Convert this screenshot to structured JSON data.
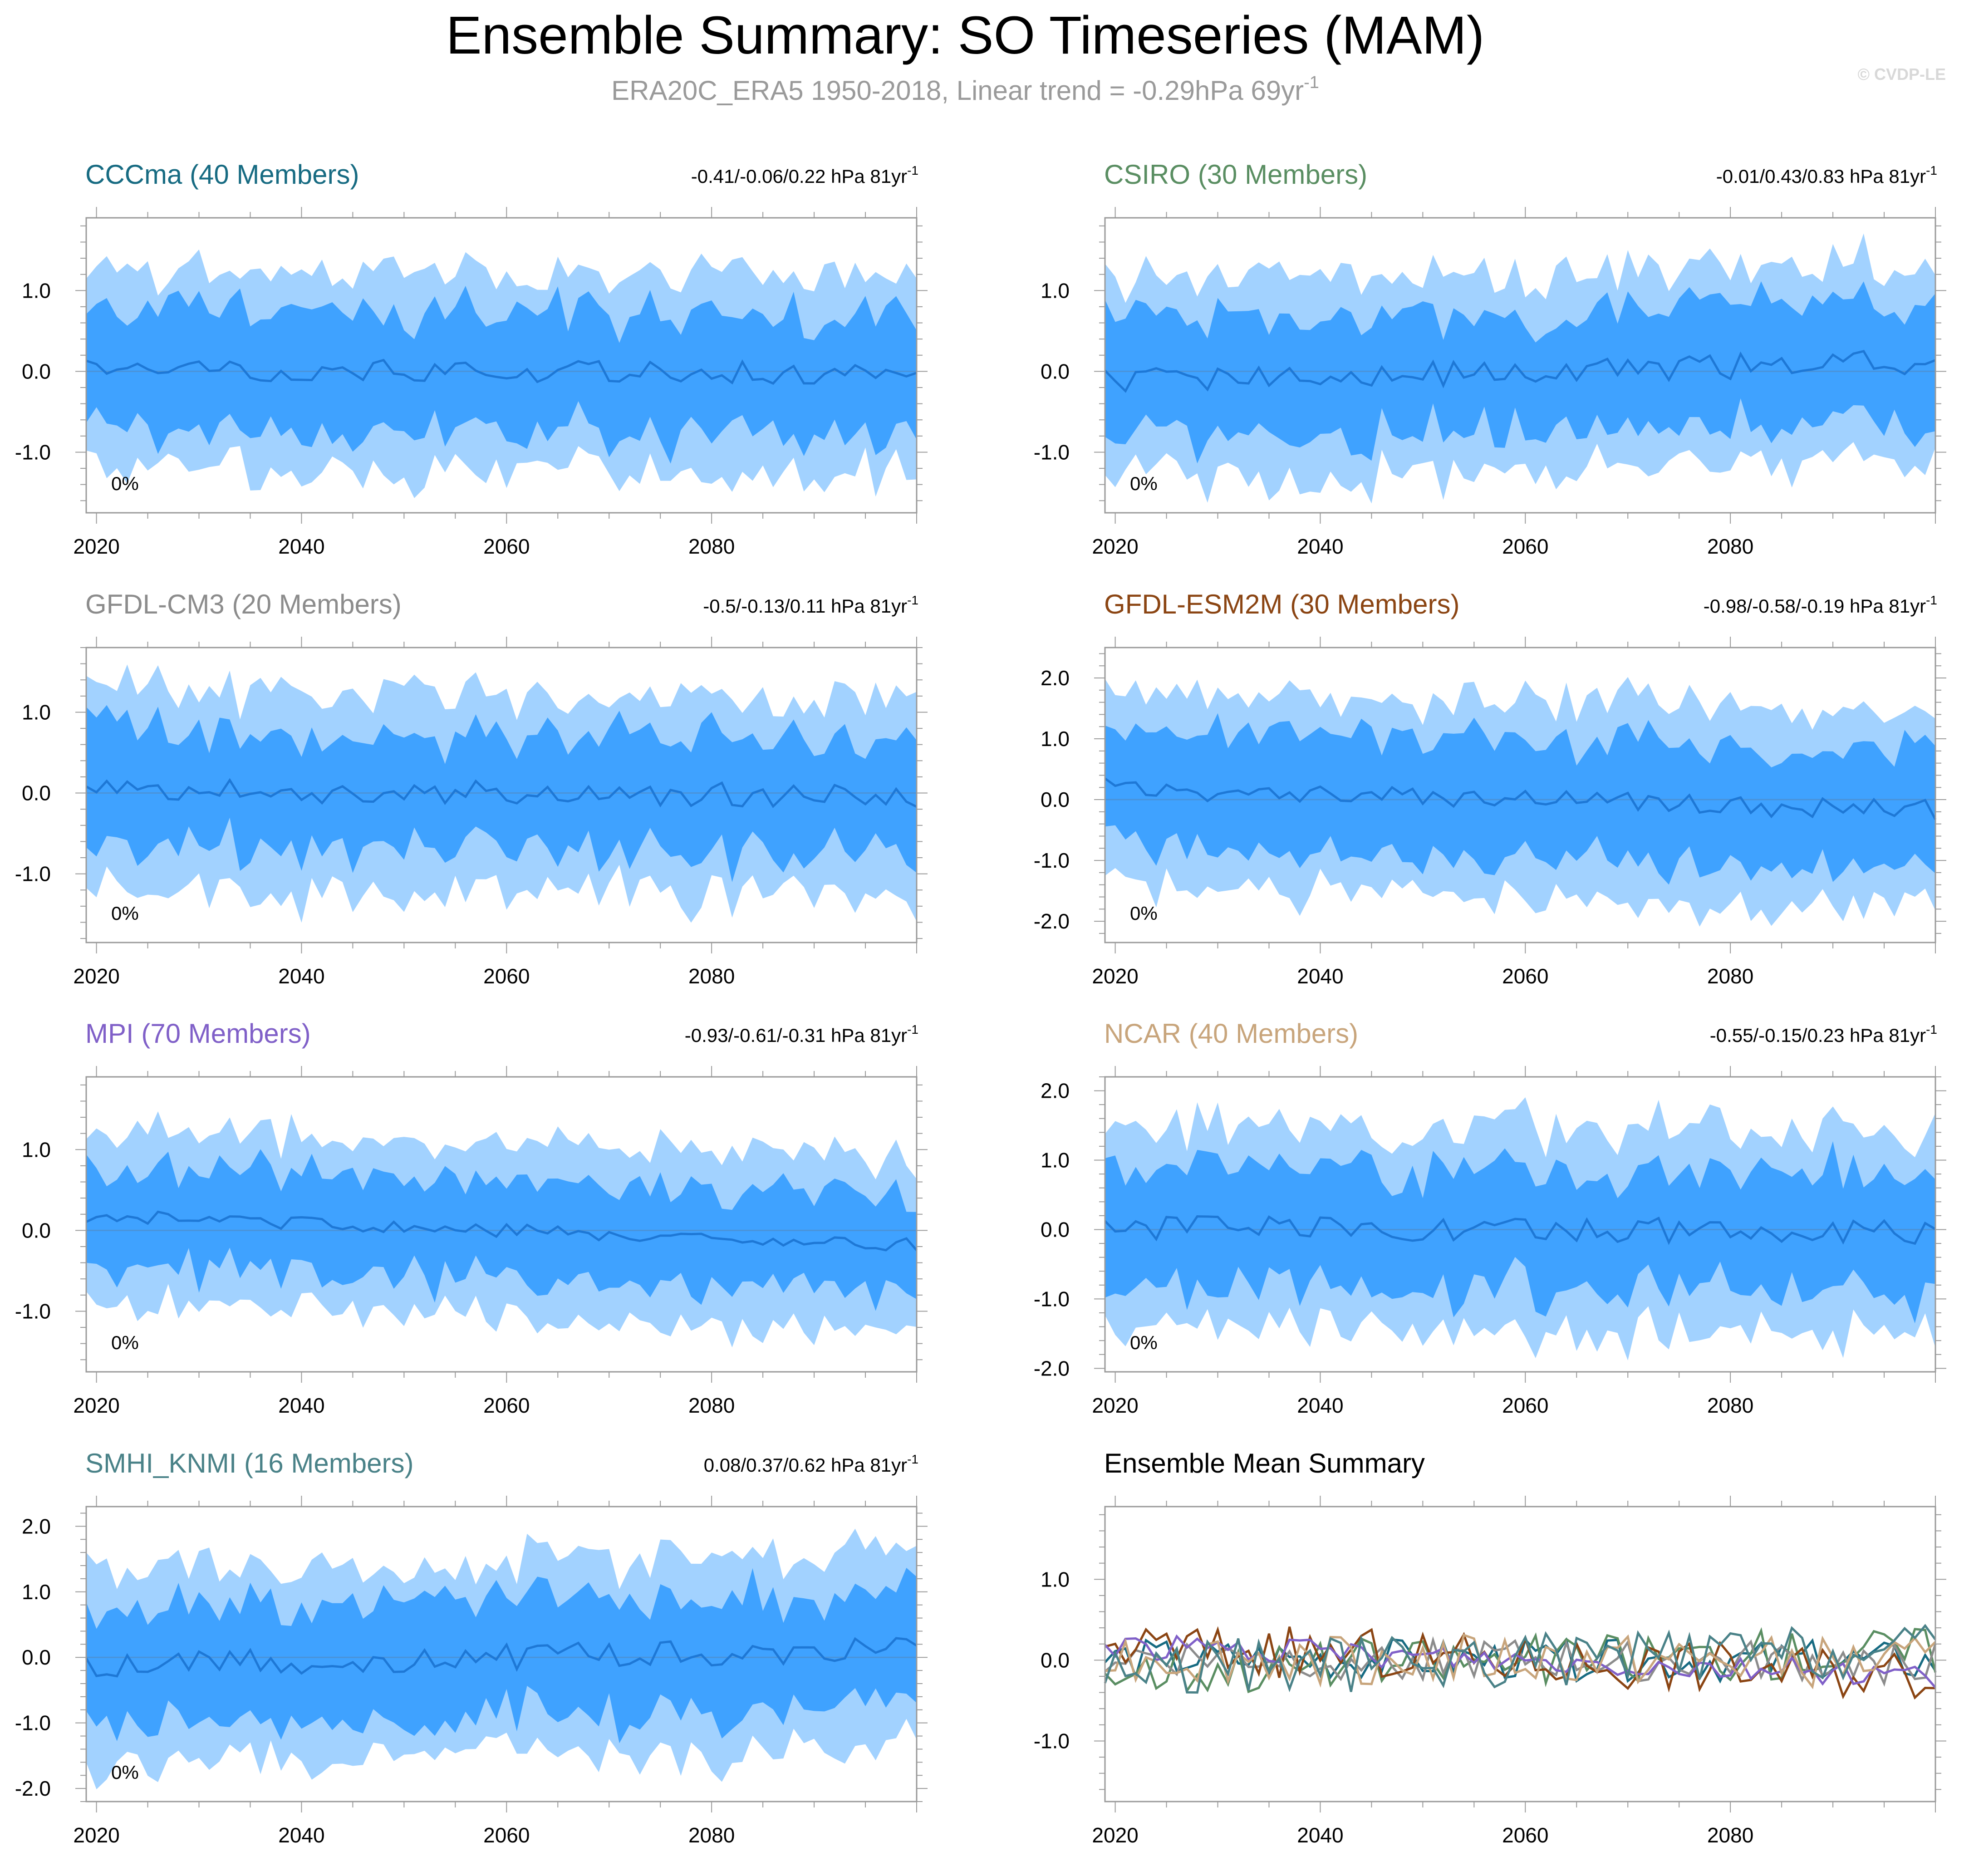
{
  "title": "Ensemble Summary: SO Timeseries (MAM)",
  "subtitle": "ERA20C_ERA5 1950-2018, Linear trend = -0.29hPa 69yr",
  "subtitle_sup": "-1",
  "watermark": "© CVDP-LE",
  "colors": {
    "band_outer": "#a2d2ff",
    "band_inner": "#3fa2ff",
    "mean_line": "#1e78d6",
    "zero_line": "#4a93d9",
    "axis": "#9a9a9a"
  },
  "chart_data": [
    {
      "type": "area",
      "name": "CCCma (40 Members)",
      "title": "CCCma (40 Members)",
      "title_color": "#176b82",
      "trend": "-0.41/-0.06/0.22 hPa 81yr",
      "trend_sup": "-1",
      "pct_label": "0%",
      "x_range": [
        2019,
        2100
      ],
      "ylim": [
        -1.75,
        1.9
      ],
      "yticks": [
        "1.0",
        "0.0",
        "-1.0"
      ],
      "ytick_values": [
        1,
        0,
        -1
      ],
      "xticks": [
        "2020",
        "2040",
        "2060",
        "2080"
      ],
      "xtick_values": [
        2020,
        2040,
        2060,
        2080
      ],
      "mean_amp": 0.14,
      "mean_trend": -0.06,
      "inner_width": 0.72,
      "outer_width": 1.2,
      "seed": 11
    },
    {
      "type": "area",
      "name": "CSIRO (30 Members)",
      "title": "CSIRO (30 Members)",
      "title_color": "#5a8e62",
      "trend": "-0.01/0.43/0.83 hPa 81yr",
      "trend_sup": "-1",
      "pct_label": "0%",
      "x_range": [
        2019,
        2100
      ],
      "ylim": [
        -1.75,
        1.9
      ],
      "yticks": [
        "1.0",
        "0.0",
        "-1.0"
      ],
      "ytick_values": [
        1,
        0,
        -1
      ],
      "xticks": [
        "2020",
        "2040",
        "2060",
        "2080"
      ],
      "xtick_values": [
        2020,
        2040,
        2060,
        2080
      ],
      "mean_amp": 0.16,
      "mean_trend": 0.43,
      "inner_width": 0.72,
      "outer_width": 1.2,
      "seed": 23
    },
    {
      "type": "area",
      "name": "GFDL-CM3 (20 Members)",
      "title": "GFDL-CM3 (20 Members)",
      "title_color": "#8c8c8c",
      "trend": "-0.5/-0.13/0.11 hPa 81yr",
      "trend_sup": "-1",
      "pct_label": "0%",
      "x_range": [
        2019,
        2100
      ],
      "ylim": [
        -1.85,
        1.8
      ],
      "yticks": [
        "1.0",
        "0.0",
        "-1.0"
      ],
      "ytick_values": [
        1,
        0,
        -1
      ],
      "xticks": [
        "2020",
        "2040",
        "2060",
        "2080"
      ],
      "xtick_values": [
        2020,
        2040,
        2060,
        2080
      ],
      "mean_amp": 0.15,
      "mean_trend": -0.13,
      "inner_width": 0.7,
      "outer_width": 1.2,
      "seed": 37
    },
    {
      "type": "area",
      "name": "GFDL-ESM2M (30 Members)",
      "title": "GFDL-ESM2M (30 Members)",
      "title_color": "#8b4513",
      "trend": "-0.98/-0.58/-0.19 hPa 81yr",
      "trend_sup": "-1",
      "pct_label": "0%",
      "x_range": [
        2019,
        2100
      ],
      "ylim": [
        -2.35,
        2.5
      ],
      "yticks": [
        "2.0",
        "1.0",
        "0.0",
        "-1.0",
        "-2.0"
      ],
      "ytick_values": [
        2,
        1,
        0,
        -1,
        -2
      ],
      "xticks": [
        "2020",
        "2040",
        "2060",
        "2080"
      ],
      "xtick_values": [
        2020,
        2040,
        2060,
        2080
      ],
      "mean_amp": 0.18,
      "mean_trend": -0.58,
      "inner_width": 0.95,
      "outer_width": 1.55,
      "seed": 41
    },
    {
      "type": "area",
      "name": "MPI (70 Members)",
      "title": "MPI (70 Members)",
      "title_color": "#8060c8",
      "trend": "-0.93/-0.61/-0.31 hPa 81yr",
      "trend_sup": "-1",
      "pct_label": "0%",
      "x_range": [
        2019,
        2100
      ],
      "ylim": [
        -1.75,
        1.9
      ],
      "yticks": [
        "1.0",
        "0.0",
        "-1.0"
      ],
      "ytick_values": [
        1,
        0,
        -1
      ],
      "xticks": [
        "2020",
        "2040",
        "2060",
        "2080"
      ],
      "xtick_values": [
        2020,
        2040,
        2060,
        2080
      ],
      "mean_amp": 0.08,
      "mean_trend": -0.61,
      "inner_width": 0.6,
      "outer_width": 1.05,
      "seed": 53
    },
    {
      "type": "area",
      "name": "NCAR (40 Members)",
      "title": "NCAR (40 Members)",
      "title_color": "#c8a57c",
      "trend": "-0.55/-0.15/0.23 hPa 81yr",
      "trend_sup": "-1",
      "pct_label": "0%",
      "x_range": [
        2019,
        2100
      ],
      "ylim": [
        -2.05,
        2.2
      ],
      "yticks": [
        "2.0",
        "1.0",
        "0.0",
        "-1.0",
        "-2.0"
      ],
      "ytick_values": [
        2,
        1,
        0,
        -1,
        -2
      ],
      "xticks": [
        "2020",
        "2040",
        "2060",
        "2080"
      ],
      "xtick_values": [
        2020,
        2040,
        2060,
        2080
      ],
      "mean_amp": 0.18,
      "mean_trend": -0.15,
      "inner_width": 0.85,
      "outer_width": 1.45,
      "seed": 67
    },
    {
      "type": "area",
      "name": "SMHI_KNMI (16 Members)",
      "title": "SMHI_KNMI (16 Members)",
      "title_color": "#4a8288",
      "trend": "0.08/0.37/0.62 hPa 81yr",
      "trend_sup": "-1",
      "pct_label": "0%",
      "x_range": [
        2019,
        2100
      ],
      "ylim": [
        -2.2,
        2.3
      ],
      "yticks": [
        "2.0",
        "1.0",
        "0.0",
        "-1.0",
        "-2.0"
      ],
      "ytick_values": [
        2,
        1,
        0,
        -1,
        -2
      ],
      "xticks": [
        "2020",
        "2040",
        "2060",
        "2080"
      ],
      "xtick_values": [
        2020,
        2040,
        2060,
        2080
      ],
      "mean_amp": 0.2,
      "mean_trend": 0.37,
      "inner_width": 0.85,
      "outer_width": 1.45,
      "seed": 79
    },
    {
      "type": "line",
      "name": "Ensemble Mean Summary",
      "title": "Ensemble Mean Summary",
      "title_color": "#000000",
      "x_range": [
        2019,
        2100
      ],
      "ylim": [
        -1.75,
        1.9
      ],
      "yticks": [
        "1.0",
        "0.0",
        "-1.0"
      ],
      "ytick_values": [
        1,
        0,
        -1
      ],
      "xticks": [
        "2020",
        "2040",
        "2060",
        "2080"
      ],
      "xtick_values": [
        2020,
        2040,
        2060,
        2080
      ],
      "series": [
        {
          "name": "CCCma",
          "color": "#176b82",
          "amp": 0.16,
          "trend": -0.06,
          "seed": 11
        },
        {
          "name": "CSIRO",
          "color": "#5a8e62",
          "amp": 0.2,
          "trend": 0.43,
          "seed": 23
        },
        {
          "name": "GFDL-CM3",
          "color": "#8c8c8c",
          "amp": 0.16,
          "trend": -0.13,
          "seed": 37
        },
        {
          "name": "GFDL-ESM2M",
          "color": "#8b4513",
          "amp": 0.2,
          "trend": -0.58,
          "seed": 41
        },
        {
          "name": "MPI",
          "color": "#8060c8",
          "amp": 0.1,
          "trend": -0.61,
          "seed": 53
        },
        {
          "name": "NCAR",
          "color": "#c8a57c",
          "amp": 0.2,
          "trend": -0.15,
          "seed": 67
        },
        {
          "name": "SMHI_KNMI",
          "color": "#4a8288",
          "amp": 0.22,
          "trend": 0.37,
          "seed": 79
        }
      ]
    }
  ]
}
